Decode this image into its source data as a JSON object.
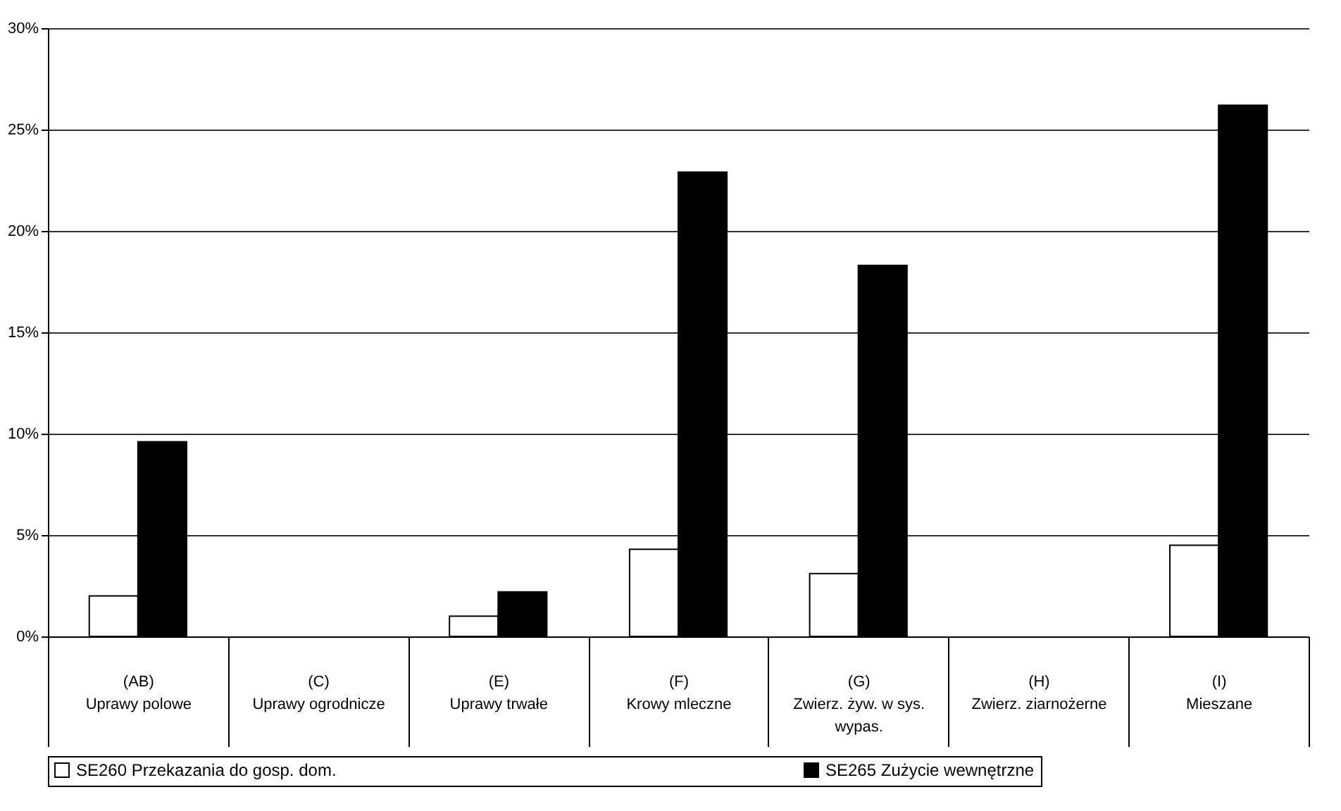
{
  "chart_data": {
    "type": "bar",
    "categories": [
      "(AB) Uprawy polowe",
      "(C) Uprawy ogrodnicze",
      "(E) Uprawy trwałe",
      "(F) Krowy mleczne",
      "(G) Zwierz. żyw. w sys. wypas.",
      "(H) Zwierz. ziarnożerne",
      "(I) Mieszane"
    ],
    "series": [
      {
        "name": "SE260 Przekazania do gosp. dom.",
        "color": "#ffffff",
        "values": [
          2.0,
          null,
          1.0,
          4.3,
          3.1,
          null,
          4.5
        ]
      },
      {
        "name": "SE265 Zużycie wewnętrzne",
        "color": "#000000",
        "values": [
          9.6,
          null,
          2.2,
          22.9,
          18.3,
          null,
          26.2
        ]
      }
    ],
    "ylim": [
      0,
      30
    ],
    "yticks": [
      {
        "value": 0,
        "label": "0%"
      },
      {
        "value": 5,
        "label": "5%"
      },
      {
        "value": 10,
        "label": "10%"
      },
      {
        "value": 15,
        "label": "15%"
      },
      {
        "value": 20,
        "label": "20%"
      },
      {
        "value": 25,
        "label": "25%"
      },
      {
        "value": 30,
        "label": "30%"
      }
    ],
    "grid": "y",
    "legend": "bottom"
  }
}
